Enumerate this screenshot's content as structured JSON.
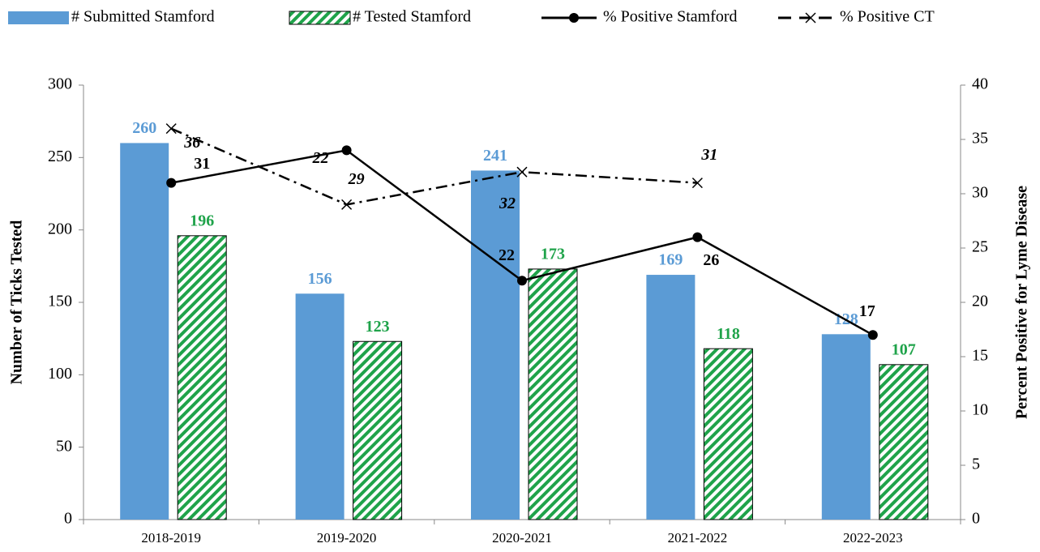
{
  "chart_data": {
    "type": "bar",
    "categories": [
      "2018-2019",
      "2019-2020",
      "2020-2021",
      "2021-2022",
      "2022-2023"
    ],
    "series": [
      {
        "name": "# Submitted Stamford",
        "color": "#5b9bd5",
        "values": [
          260,
          156,
          241,
          169,
          128
        ]
      },
      {
        "name": "# Tested Stamford",
        "color": "#1fa34a",
        "pattern": "hatch",
        "values": [
          196,
          123,
          173,
          118,
          107
        ]
      },
      {
        "name": "% Positive Stamford",
        "color": "#000000",
        "type": "line",
        "marker": "circle",
        "axis": "y2",
        "values": [
          31,
          34,
          22,
          26,
          17
        ],
        "value_labels": [
          "31",
          null,
          "22",
          "26",
          "17"
        ]
      },
      {
        "name": "% Positive CT",
        "color": "#000000",
        "type": "line",
        "marker": "x",
        "dash": "dash-dot",
        "axis": "y2",
        "values": [
          36,
          29,
          32,
          31,
          null
        ]
      }
    ],
    "annotations": [
      "22"
    ],
    "ylabel": "Number of Ticks Tested",
    "y2label": "Percent Positive for Lyme Disease",
    "ylim": [
      0,
      300
    ],
    "yticks": [
      0,
      50,
      100,
      150,
      200,
      250,
      300
    ],
    "y2lim": [
      0,
      40
    ],
    "y2ticks": [
      0,
      5,
      10,
      15,
      20,
      25,
      30,
      35,
      40
    ],
    "legend": "top",
    "grid": false
  }
}
